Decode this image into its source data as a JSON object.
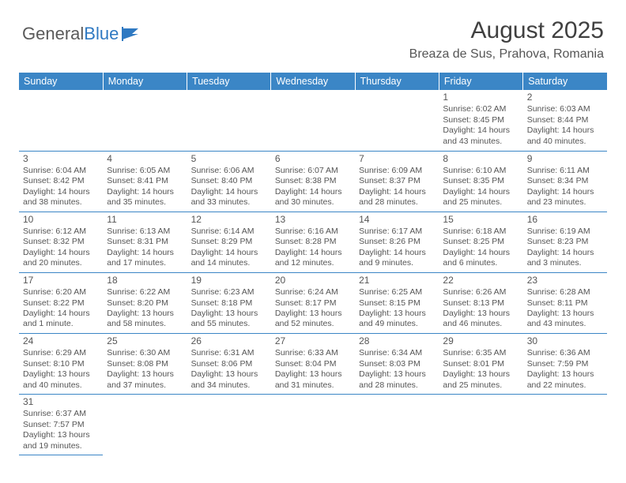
{
  "logo": {
    "text1": "General",
    "text2": "Blue"
  },
  "title": "August 2025",
  "location": "Breaza de Sus, Prahova, Romania",
  "colors": {
    "header_bg": "#3b86c6",
    "header_text": "#ffffff",
    "border": "#3b86c6",
    "text": "#555555",
    "title": "#404040"
  },
  "day_headers": [
    "Sunday",
    "Monday",
    "Tuesday",
    "Wednesday",
    "Thursday",
    "Friday",
    "Saturday"
  ],
  "weeks": [
    [
      null,
      null,
      null,
      null,
      null,
      {
        "n": "1",
        "sr": "6:02 AM",
        "ss": "8:45 PM",
        "dl": "14 hours and 43 minutes."
      },
      {
        "n": "2",
        "sr": "6:03 AM",
        "ss": "8:44 PM",
        "dl": "14 hours and 40 minutes."
      }
    ],
    [
      {
        "n": "3",
        "sr": "6:04 AM",
        "ss": "8:42 PM",
        "dl": "14 hours and 38 minutes."
      },
      {
        "n": "4",
        "sr": "6:05 AM",
        "ss": "8:41 PM",
        "dl": "14 hours and 35 minutes."
      },
      {
        "n": "5",
        "sr": "6:06 AM",
        "ss": "8:40 PM",
        "dl": "14 hours and 33 minutes."
      },
      {
        "n": "6",
        "sr": "6:07 AM",
        "ss": "8:38 PM",
        "dl": "14 hours and 30 minutes."
      },
      {
        "n": "7",
        "sr": "6:09 AM",
        "ss": "8:37 PM",
        "dl": "14 hours and 28 minutes."
      },
      {
        "n": "8",
        "sr": "6:10 AM",
        "ss": "8:35 PM",
        "dl": "14 hours and 25 minutes."
      },
      {
        "n": "9",
        "sr": "6:11 AM",
        "ss": "8:34 PM",
        "dl": "14 hours and 23 minutes."
      }
    ],
    [
      {
        "n": "10",
        "sr": "6:12 AM",
        "ss": "8:32 PM",
        "dl": "14 hours and 20 minutes."
      },
      {
        "n": "11",
        "sr": "6:13 AM",
        "ss": "8:31 PM",
        "dl": "14 hours and 17 minutes."
      },
      {
        "n": "12",
        "sr": "6:14 AM",
        "ss": "8:29 PM",
        "dl": "14 hours and 14 minutes."
      },
      {
        "n": "13",
        "sr": "6:16 AM",
        "ss": "8:28 PM",
        "dl": "14 hours and 12 minutes."
      },
      {
        "n": "14",
        "sr": "6:17 AM",
        "ss": "8:26 PM",
        "dl": "14 hours and 9 minutes."
      },
      {
        "n": "15",
        "sr": "6:18 AM",
        "ss": "8:25 PM",
        "dl": "14 hours and 6 minutes."
      },
      {
        "n": "16",
        "sr": "6:19 AM",
        "ss": "8:23 PM",
        "dl": "14 hours and 3 minutes."
      }
    ],
    [
      {
        "n": "17",
        "sr": "6:20 AM",
        "ss": "8:22 PM",
        "dl": "14 hours and 1 minute."
      },
      {
        "n": "18",
        "sr": "6:22 AM",
        "ss": "8:20 PM",
        "dl": "13 hours and 58 minutes."
      },
      {
        "n": "19",
        "sr": "6:23 AM",
        "ss": "8:18 PM",
        "dl": "13 hours and 55 minutes."
      },
      {
        "n": "20",
        "sr": "6:24 AM",
        "ss": "8:17 PM",
        "dl": "13 hours and 52 minutes."
      },
      {
        "n": "21",
        "sr": "6:25 AM",
        "ss": "8:15 PM",
        "dl": "13 hours and 49 minutes."
      },
      {
        "n": "22",
        "sr": "6:26 AM",
        "ss": "8:13 PM",
        "dl": "13 hours and 46 minutes."
      },
      {
        "n": "23",
        "sr": "6:28 AM",
        "ss": "8:11 PM",
        "dl": "13 hours and 43 minutes."
      }
    ],
    [
      {
        "n": "24",
        "sr": "6:29 AM",
        "ss": "8:10 PM",
        "dl": "13 hours and 40 minutes."
      },
      {
        "n": "25",
        "sr": "6:30 AM",
        "ss": "8:08 PM",
        "dl": "13 hours and 37 minutes."
      },
      {
        "n": "26",
        "sr": "6:31 AM",
        "ss": "8:06 PM",
        "dl": "13 hours and 34 minutes."
      },
      {
        "n": "27",
        "sr": "6:33 AM",
        "ss": "8:04 PM",
        "dl": "13 hours and 31 minutes."
      },
      {
        "n": "28",
        "sr": "6:34 AM",
        "ss": "8:03 PM",
        "dl": "13 hours and 28 minutes."
      },
      {
        "n": "29",
        "sr": "6:35 AM",
        "ss": "8:01 PM",
        "dl": "13 hours and 25 minutes."
      },
      {
        "n": "30",
        "sr": "6:36 AM",
        "ss": "7:59 PM",
        "dl": "13 hours and 22 minutes."
      }
    ],
    [
      {
        "n": "31",
        "sr": "6:37 AM",
        "ss": "7:57 PM",
        "dl": "13 hours and 19 minutes."
      },
      null,
      null,
      null,
      null,
      null,
      null
    ]
  ],
  "labels": {
    "sunrise": "Sunrise:",
    "sunset": "Sunset:",
    "daylight": "Daylight:"
  }
}
